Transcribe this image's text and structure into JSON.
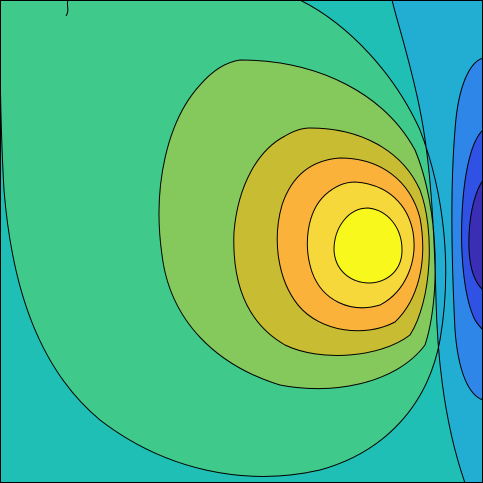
{
  "chart_data": {
    "type": "contourf",
    "title": "",
    "xlabel": "",
    "ylabel": "",
    "axes_visible": false,
    "grid": false,
    "legend": "none",
    "colormap": "parula",
    "level_colors": [
      "#3a2fb4",
      "#2f52e5",
      "#2d86e8",
      "#22aed2",
      "#1fbfb5",
      "#3fc98a",
      "#85c85c",
      "#c8bd32",
      "#fbb23b",
      "#f7d83a",
      "#f8f81c"
    ],
    "features": [
      {
        "name": "maximum",
        "kind": "peak",
        "level_index": 10,
        "center": [
          0.755,
          0.495
        ]
      },
      {
        "name": "minimum",
        "kind": "trough",
        "level_index": 0,
        "center": [
          0.985,
          0.48
        ]
      }
    ]
  }
}
